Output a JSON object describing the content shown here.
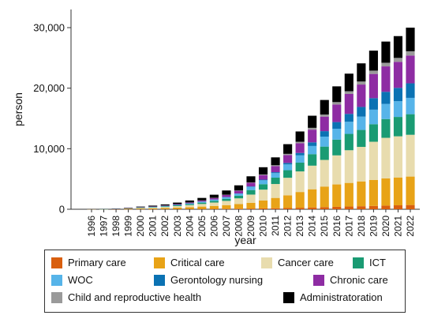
{
  "chart_data": {
    "type": "bar",
    "stacked": true,
    "title": "",
    "xlabel": "year",
    "ylabel": "person",
    "ylim": [
      0,
      33000
    ],
    "yticks": [
      0,
      10000,
      20000,
      30000
    ],
    "ytick_labels": [
      "0",
      "10,000",
      "20,000",
      "30,000"
    ],
    "grid": false,
    "legend_position": "bottom",
    "categories": [
      "1996",
      "1997",
      "1998",
      "1999",
      "2000",
      "2001",
      "2002",
      "2003",
      "2004",
      "2005",
      "2006",
      "2007",
      "2008",
      "2009",
      "2010",
      "2011",
      "2012",
      "2013",
      "2014",
      "2015",
      "2016",
      "2017",
      "2018",
      "2019",
      "2020",
      "2021",
      "2022"
    ],
    "series": [
      {
        "name": "Primary care",
        "color": "#d95f0e",
        "values": [
          0,
          0,
          5,
          10,
          20,
          20,
          30,
          40,
          50,
          60,
          70,
          80,
          100,
          120,
          140,
          170,
          200,
          250,
          300,
          350,
          400,
          450,
          500,
          550,
          600,
          650,
          700
        ]
      },
      {
        "name": "Critical care",
        "color": "#e8a317",
        "values": [
          5,
          10,
          30,
          60,
          100,
          130,
          170,
          230,
          300,
          380,
          480,
          600,
          750,
          950,
          1300,
          1700,
          2100,
          2600,
          3000,
          3400,
          3700,
          3900,
          4100,
          4300,
          4500,
          4600,
          4700
        ]
      },
      {
        "name": "Cancer care",
        "color": "#e8dcae",
        "values": [
          5,
          10,
          30,
          60,
          100,
          130,
          180,
          250,
          330,
          430,
          560,
          700,
          950,
          1350,
          1800,
          2300,
          2900,
          3400,
          3900,
          4400,
          4800,
          5400,
          5700,
          6300,
          6700,
          6800,
          6900
        ]
      },
      {
        "name": "ICT",
        "color": "#1a9b73",
        "values": [
          0,
          5,
          10,
          20,
          50,
          70,
          90,
          130,
          160,
          220,
          270,
          350,
          450,
          750,
          900,
          1050,
          1250,
          1450,
          1900,
          2200,
          2600,
          2700,
          2800,
          2900,
          3100,
          3200,
          3400
        ]
      },
      {
        "name": "WOC",
        "color": "#56b4e9",
        "values": [
          0,
          5,
          10,
          20,
          40,
          60,
          80,
          100,
          140,
          180,
          230,
          280,
          350,
          550,
          650,
          750,
          950,
          1200,
          1350,
          1650,
          1800,
          2000,
          2200,
          2400,
          2500,
          2600,
          2700
        ]
      },
      {
        "name": "Gerontology nursing",
        "color": "#0b72b3",
        "values": [
          0,
          0,
          0,
          0,
          0,
          0,
          0,
          0,
          0,
          0,
          0,
          0,
          0,
          50,
          100,
          150,
          250,
          400,
          600,
          900,
          1100,
          1300,
          1600,
          1900,
          2000,
          2200,
          2400
        ]
      },
      {
        "name": "Chronic care",
        "color": "#8e2ca3",
        "values": [
          0,
          0,
          5,
          10,
          30,
          50,
          70,
          100,
          140,
          180,
          250,
          350,
          450,
          600,
          750,
          1000,
          1300,
          1600,
          2100,
          2400,
          2900,
          3300,
          3700,
          4000,
          4200,
          4300,
          4600
        ]
      },
      {
        "name": "Child and reproductive health",
        "color": "#9a9a9a",
        "values": [
          0,
          0,
          0,
          0,
          0,
          0,
          0,
          0,
          10,
          20,
          30,
          40,
          50,
          70,
          100,
          150,
          200,
          250,
          300,
          350,
          400,
          450,
          500,
          550,
          600,
          650,
          700
        ]
      },
      {
        "name": "Administratoration",
        "color": "#000000",
        "values": [
          10,
          10,
          30,
          60,
          100,
          140,
          180,
          250,
          320,
          400,
          510,
          700,
          850,
          1000,
          1200,
          1300,
          1600,
          1700,
          2000,
          2400,
          2600,
          2900,
          3000,
          3300,
          3500,
          3600,
          3900
        ]
      }
    ]
  }
}
